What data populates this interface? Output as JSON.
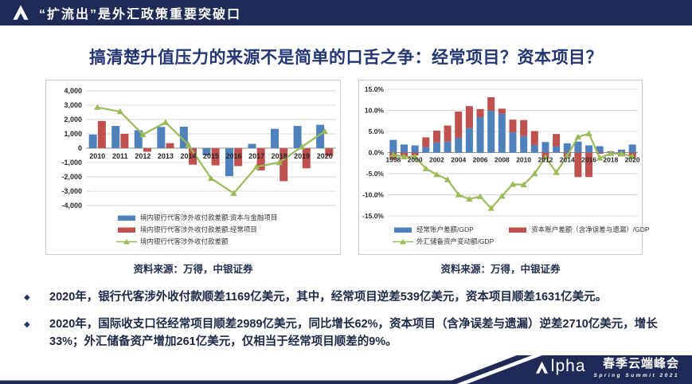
{
  "header": {
    "title": "“扩流出”是外汇政策重要突破口"
  },
  "slide_title": "搞清楚升值压力的来源不是简单的口舌之争：经常项目？资本项目？",
  "colors": {
    "navy": "#1f2a57",
    "chart_blue": "#4f81bd",
    "chart_red": "#c0504d",
    "chart_green": "#9bbb59"
  },
  "chart_data": [
    {
      "type": "bar",
      "stacked": false,
      "unit": "亿美元",
      "categories": [
        "2010",
        "2011",
        "2012",
        "2013",
        "2014",
        "2015",
        "2016",
        "2017",
        "2018",
        "2019",
        "2020"
      ],
      "series": [
        {
          "name": "境内银行代客涉外收付款差额:资本与金融项目",
          "kind": "bar",
          "color": "#4f81bd",
          "values": [
            950,
            1550,
            1250,
            1480,
            1500,
            -500,
            -1950,
            300,
            1350,
            1550,
            1631
          ]
        },
        {
          "name": "境内银行代客涉外收付款差额:经常项目",
          "kind": "bar",
          "color": "#c0504d",
          "values": [
            1900,
            1000,
            -250,
            350,
            -1150,
            -1200,
            -1250,
            -1550,
            -2300,
            -1400,
            -539
          ]
        },
        {
          "name": "境内银行代客涉外收付款差额",
          "kind": "line",
          "color": "#9bbb59",
          "values": [
            2850,
            2550,
            950,
            1800,
            250,
            -2100,
            -3150,
            -1300,
            -1000,
            100,
            1169
          ]
        }
      ],
      "ylim": [
        -4000,
        4000
      ],
      "ystep": 1000,
      "yformat": "thousands",
      "xtick_every": 1,
      "grid": true,
      "legend_position": "bottom",
      "source": "资料来源：万得，中银证券"
    },
    {
      "type": "bar",
      "stacked": true,
      "unit": "% of GDP",
      "categories": [
        "1998",
        "1999",
        "2000",
        "2001",
        "2002",
        "2003",
        "2004",
        "2005",
        "2006",
        "2007",
        "2008",
        "2009",
        "2010",
        "2011",
        "2012",
        "2013",
        "2014",
        "2015",
        "2016",
        "2017",
        "2018",
        "2019",
        "2020"
      ],
      "series": [
        {
          "name": "经常账户差额/GDP",
          "kind": "bar",
          "color": "#4f81bd",
          "values": [
            3.0,
            1.9,
            1.7,
            1.3,
            2.4,
            2.6,
            3.5,
            5.8,
            8.4,
            9.9,
            9.2,
            4.8,
            3.9,
            1.8,
            2.5,
            1.5,
            2.2,
            2.6,
            1.7,
            1.5,
            0.2,
            0.7,
            1.9
          ]
        },
        {
          "name": "资本账户差额（含净误差与遗漏）/GDP",
          "kind": "bar",
          "color": "#c0504d",
          "values": [
            -1.5,
            -0.9,
            -0.7,
            2.3,
            2.8,
            3.8,
            6.2,
            5.2,
            1.9,
            3.2,
            1.2,
            3.0,
            3.8,
            3.3,
            -1.4,
            2.9,
            -1.0,
            -5.8,
            -5.8,
            -0.3,
            0.1,
            -0.9,
            -1.2
          ]
        },
        {
          "name": "外汇储备资产变动额/GDP",
          "kind": "line",
          "color": "#9bbb59",
          "values": [
            -0.5,
            -1.0,
            -1.0,
            -3.8,
            -5.2,
            -6.4,
            -10.0,
            -11.0,
            -10.4,
            -13.2,
            -10.3,
            -7.5,
            -7.6,
            -5.0,
            -1.1,
            -4.7,
            -0.8,
            3.7,
            4.5,
            -1.3,
            -0.2,
            -0.3,
            -0.9
          ]
        }
      ],
      "ylim": [
        -15,
        15
      ],
      "ystep": 5,
      "yformat": "percent1",
      "xtick_every": 2,
      "grid": true,
      "legend_position": "bottom",
      "source": "资料来源：万得，中银证券"
    }
  ],
  "bullets": [
    "2020年，银行代客涉外收付款顺差1169亿美元，其中，经常项目逆差539亿美元，资本项目顺差1631亿美元。",
    "2020年，国际收支口径经常项目顺差2989亿美元，同比增长62%，资本项目（含净误差与遗漏）逆差2710亿美元，增长33%；外汇储备资产增加261亿美元，仅相当于经常项目顺差的9%。"
  ],
  "footer": {
    "brand_rest": "lpha",
    "event_cn": "春季云端峰会",
    "event_en": "Spring Summit 2021"
  }
}
